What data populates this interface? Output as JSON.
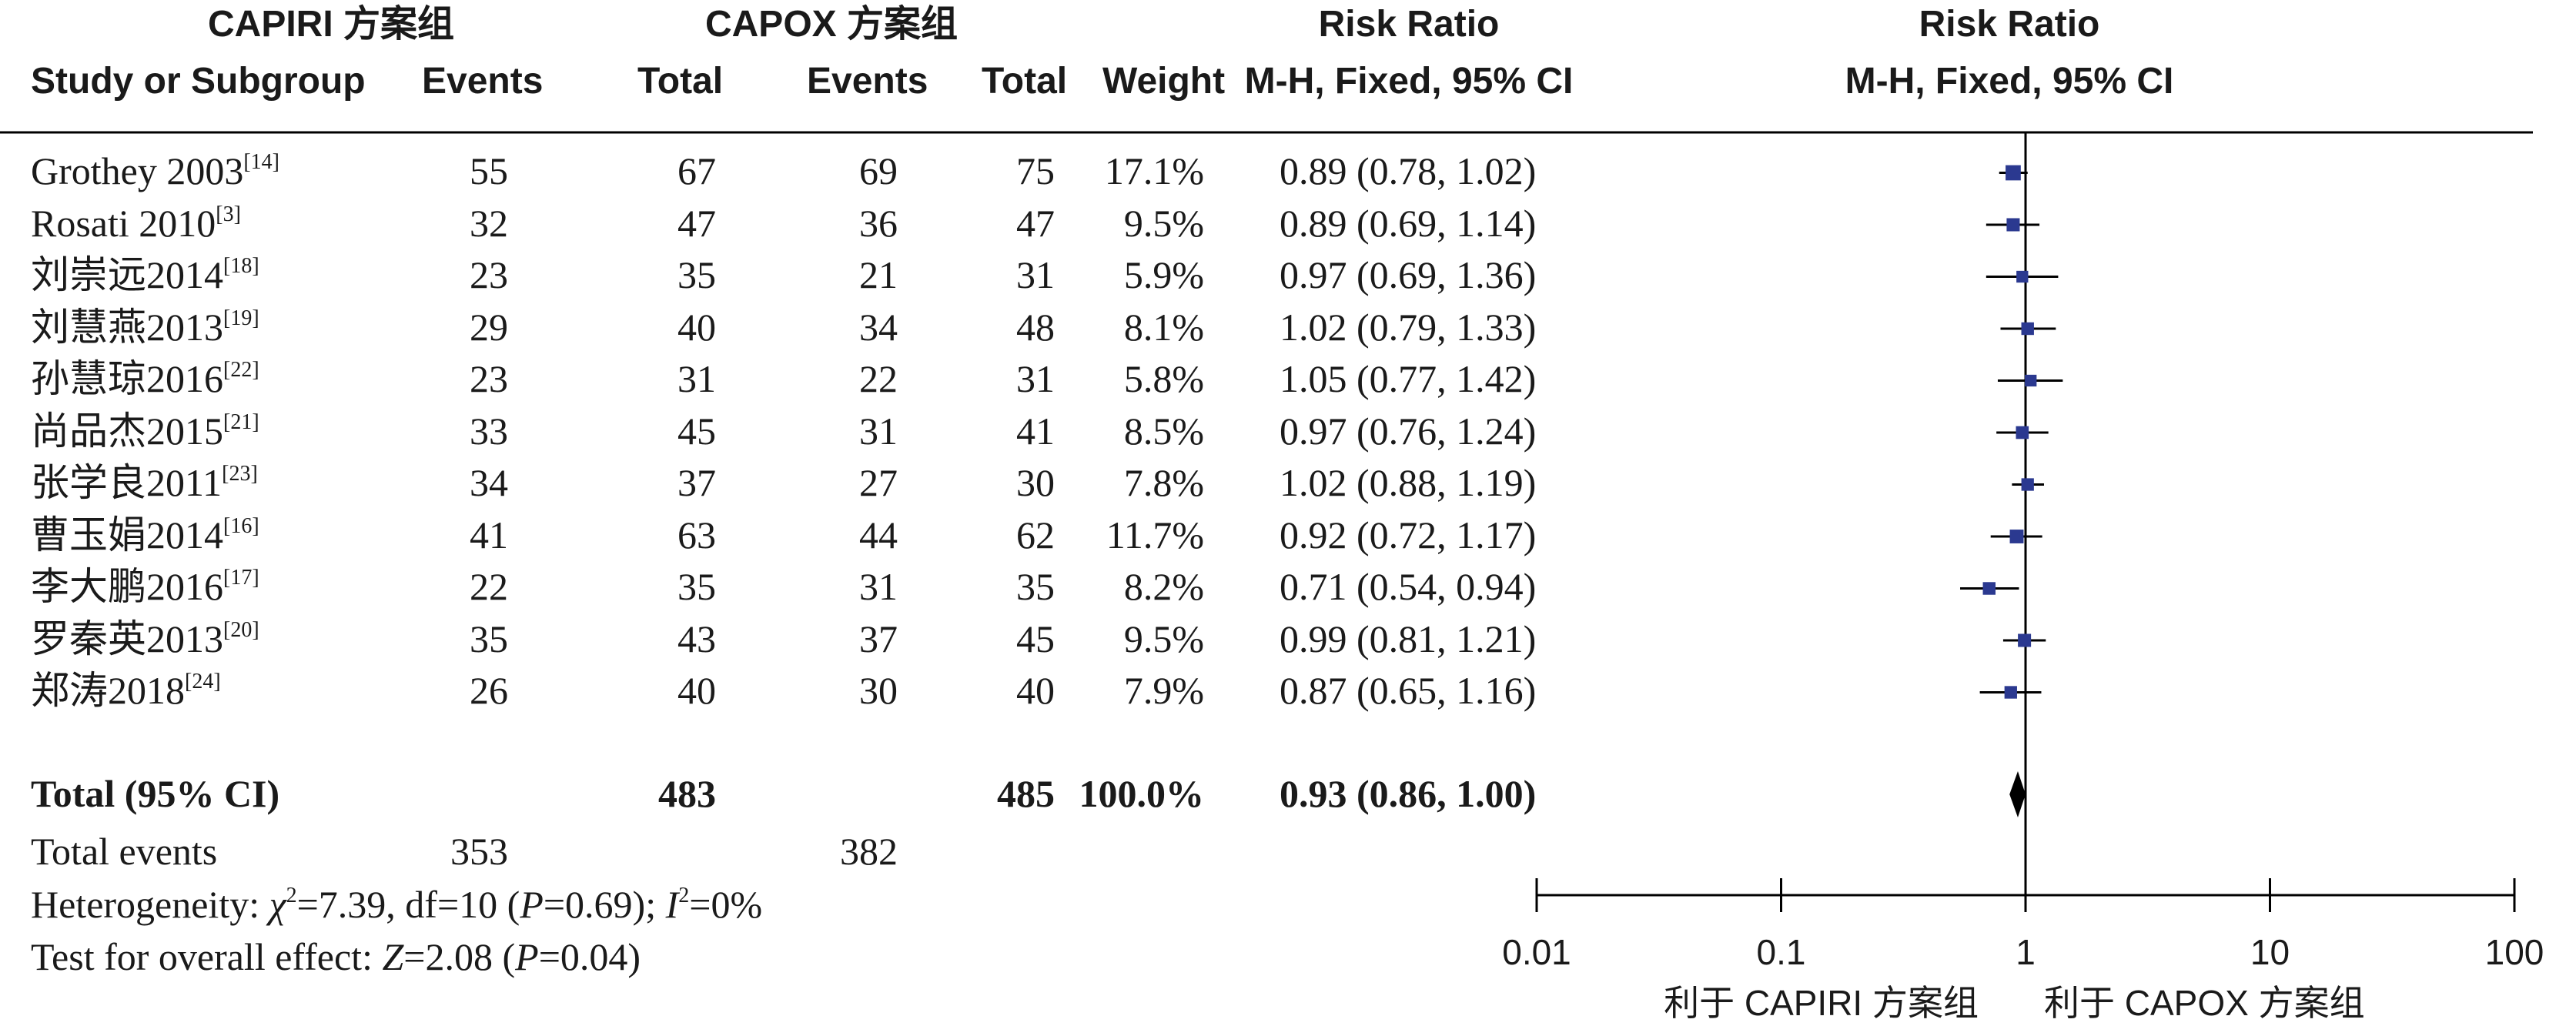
{
  "header": {
    "group1": "CAPIRI 方案组",
    "group2": "CAPOX 方案组",
    "rr_col_title": "Risk Ratio",
    "rr_col_method": "M-H, Fixed, 95% CI",
    "plot_title": "Risk Ratio",
    "plot_method": "M-H, Fixed, 95% CI",
    "col_study": "Study or Subgroup",
    "col_events1": "Events",
    "col_total1": "Total",
    "col_events2": "Events",
    "col_total2": "Total",
    "col_weight": "Weight"
  },
  "studies": [
    {
      "name": "Grothey 2003",
      "ref": "[14]",
      "e1": "55",
      "t1": "67",
      "e2": "69",
      "t2": "75",
      "weight": "17.1%",
      "ci": "0.89 (0.78, 1.02)"
    },
    {
      "name": "Rosati 2010",
      "ref": "[3]",
      "e1": "32",
      "t1": "47",
      "e2": "36",
      "t2": "47",
      "weight": "9.5%",
      "ci": "0.89 (0.69, 1.14)"
    },
    {
      "name": "刘崇远2014",
      "ref": "[18]",
      "e1": "23",
      "t1": "35",
      "e2": "21",
      "t2": "31",
      "weight": "5.9%",
      "ci": "0.97 (0.69, 1.36)"
    },
    {
      "name": "刘慧燕2013",
      "ref": "[19]",
      "e1": "29",
      "t1": "40",
      "e2": "34",
      "t2": "48",
      "weight": "8.1%",
      "ci": "1.02 (0.79, 1.33)"
    },
    {
      "name": "孙慧琼2016",
      "ref": "[22]",
      "e1": "23",
      "t1": "31",
      "e2": "22",
      "t2": "31",
      "weight": "5.8%",
      "ci": "1.05 (0.77, 1.42)"
    },
    {
      "name": "尚品杰2015",
      "ref": "[21]",
      "e1": "33",
      "t1": "45",
      "e2": "31",
      "t2": "41",
      "weight": "8.5%",
      "ci": "0.97 (0.76, 1.24)"
    },
    {
      "name": "张学良2011",
      "ref": "[23]",
      "e1": "34",
      "t1": "37",
      "e2": "27",
      "t2": "30",
      "weight": "7.8%",
      "ci": "1.02 (0.88, 1.19)"
    },
    {
      "name": "曹玉娟2014",
      "ref": "[16]",
      "e1": "41",
      "t1": "63",
      "e2": "44",
      "t2": "62",
      "weight": "11.7%",
      "ci": "0.92 (0.72, 1.17)"
    },
    {
      "name": "李大鹏2016",
      "ref": "[17]",
      "e1": "22",
      "t1": "35",
      "e2": "31",
      "t2": "35",
      "weight": "8.2%",
      "ci": "0.71 (0.54, 0.94)"
    },
    {
      "name": "罗秦英2013",
      "ref": "[20]",
      "e1": "35",
      "t1": "43",
      "e2": "37",
      "t2": "45",
      "weight": "9.5%",
      "ci": "0.99 (0.81, 1.21)"
    },
    {
      "name": "郑涛2018",
      "ref": "[24]",
      "e1": "26",
      "t1": "40",
      "e2": "30",
      "t2": "40",
      "weight": "7.9%",
      "ci": "0.87 (0.65, 1.16)"
    }
  ],
  "total": {
    "label": "Total (95% CI)",
    "t1": "483",
    "t2": "485",
    "weight": "100.0%",
    "ci": "0.93 (0.86, 1.00)"
  },
  "total_events": {
    "label": "Total events",
    "e1": "353",
    "e2": "382"
  },
  "heterogeneity": {
    "label": "Heterogeneity: ",
    "chi_symbol": "χ",
    "chi_sup": "2",
    "chi_value": "=7.39, df=10 (",
    "p_symbol": "P",
    "p_value": "=0.69); ",
    "i_symbol": "I",
    "i_sup": "2",
    "i_value": "=0%"
  },
  "overall_effect": {
    "label": "Test for overall effect: ",
    "z_symbol": "Z",
    "z_value": "=2.08 (",
    "p_symbol": "P",
    "p_value": "=0.04)"
  },
  "favours": {
    "left": "利于 CAPIRI 方案组",
    "right": "利于 CAPOX 方案组"
  },
  "chart_data": {
    "type": "forest",
    "scale": "log",
    "xlim": [
      0.01,
      100
    ],
    "ticks": [
      0.01,
      0.1,
      1,
      10,
      100
    ],
    "tick_labels": [
      "0.01",
      "0.1",
      "1",
      "10",
      "100"
    ],
    "reference_line": 1,
    "colors": {
      "marker": "#2b3990",
      "line": "#000000"
    },
    "studies": [
      {
        "rr": 0.89,
        "lo": 0.78,
        "hi": 1.02,
        "weight": 17.1
      },
      {
        "rr": 0.89,
        "lo": 0.69,
        "hi": 1.14,
        "weight": 9.5
      },
      {
        "rr": 0.97,
        "lo": 0.69,
        "hi": 1.36,
        "weight": 5.9
      },
      {
        "rr": 1.02,
        "lo": 0.79,
        "hi": 1.33,
        "weight": 8.1
      },
      {
        "rr": 1.05,
        "lo": 0.77,
        "hi": 1.42,
        "weight": 5.8
      },
      {
        "rr": 0.97,
        "lo": 0.76,
        "hi": 1.24,
        "weight": 8.5
      },
      {
        "rr": 1.02,
        "lo": 0.88,
        "hi": 1.19,
        "weight": 7.8
      },
      {
        "rr": 0.92,
        "lo": 0.72,
        "hi": 1.17,
        "weight": 11.7
      },
      {
        "rr": 0.71,
        "lo": 0.54,
        "hi": 0.94,
        "weight": 8.2
      },
      {
        "rr": 0.99,
        "lo": 0.81,
        "hi": 1.21,
        "weight": 9.5
      },
      {
        "rr": 0.87,
        "lo": 0.65,
        "hi": 1.16,
        "weight": 7.9
      }
    ],
    "pooled": {
      "rr": 0.93,
      "lo": 0.86,
      "hi": 1.0
    }
  }
}
